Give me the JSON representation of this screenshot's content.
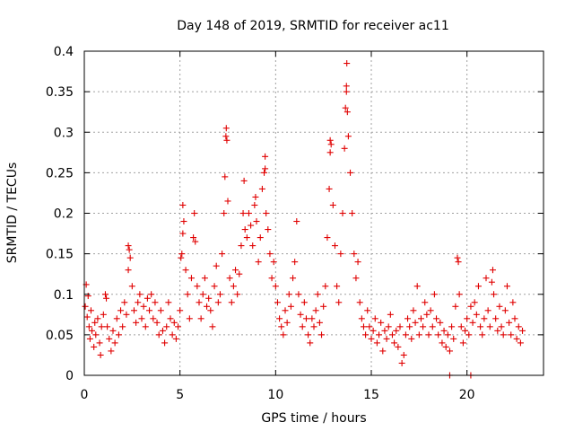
{
  "chart_data": {
    "type": "scatter",
    "title": "Day 148 of 2019, SRMTID for receiver ac11",
    "xlabel": "GPS time / hours",
    "ylabel": "SRMTID / TECUs",
    "xlim": [
      0,
      24
    ],
    "ylim": [
      0,
      0.4
    ],
    "xticks": [
      0,
      5,
      10,
      15,
      20
    ],
    "xtick_labels": [
      "0",
      "5",
      "10",
      "15",
      "20"
    ],
    "yticks": [
      0,
      0.05,
      0.1,
      0.15,
      0.2,
      0.25,
      0.3,
      0.35,
      0.4
    ],
    "ytick_labels": [
      "0",
      "0.05",
      "0.1",
      "0.15",
      "0.2",
      "0.25",
      "0.3",
      "0.35",
      "0.4"
    ],
    "grid": true,
    "marker": "plus",
    "color": "#e00000",
    "series": [
      {
        "name": "SRMTID",
        "points": [
          [
            0.05,
            0.085
          ],
          [
            0.1,
            0.112
          ],
          [
            0.15,
            0.072
          ],
          [
            0.2,
            0.098
          ],
          [
            0.25,
            0.06
          ],
          [
            0.3,
            0.045
          ],
          [
            0.35,
            0.08
          ],
          [
            0.4,
            0.055
          ],
          [
            0.5,
            0.035
          ],
          [
            0.55,
            0.065
          ],
          [
            0.6,
            0.05
          ],
          [
            0.7,
            0.07
          ],
          [
            0.8,
            0.04
          ],
          [
            0.85,
            0.025
          ],
          [
            0.9,
            0.06
          ],
          [
            1.0,
            0.075
          ],
          [
            1.1,
            0.1
          ],
          [
            1.15,
            0.095
          ],
          [
            1.2,
            0.06
          ],
          [
            1.3,
            0.045
          ],
          [
            1.4,
            0.03
          ],
          [
            1.5,
            0.055
          ],
          [
            1.6,
            0.04
          ],
          [
            1.7,
            0.07
          ],
          [
            1.8,
            0.05
          ],
          [
            1.9,
            0.08
          ],
          [
            2.0,
            0.06
          ],
          [
            2.1,
            0.09
          ],
          [
            2.2,
            0.075
          ],
          [
            2.3,
            0.13
          ],
          [
            2.35,
            0.155
          ],
          [
            2.4,
            0.145
          ],
          [
            2.5,
            0.11
          ],
          [
            2.6,
            0.08
          ],
          [
            2.7,
            0.065
          ],
          [
            2.8,
            0.09
          ],
          [
            2.9,
            0.1
          ],
          [
            3.0,
            0.07
          ],
          [
            3.1,
            0.085
          ],
          [
            3.2,
            0.06
          ],
          [
            3.3,
            0.095
          ],
          [
            3.4,
            0.08
          ],
          [
            3.5,
            0.1
          ],
          [
            3.6,
            0.07
          ],
          [
            3.7,
            0.09
          ],
          [
            3.8,
            0.065
          ],
          [
            3.9,
            0.05
          ],
          [
            4.0,
            0.08
          ],
          [
            4.1,
            0.055
          ],
          [
            4.2,
            0.04
          ],
          [
            4.3,
            0.06
          ],
          [
            4.4,
            0.09
          ],
          [
            4.5,
            0.07
          ],
          [
            4.6,
            0.05
          ],
          [
            4.7,
            0.065
          ],
          [
            4.8,
            0.045
          ],
          [
            4.9,
            0.06
          ],
          [
            5.0,
            0.08
          ],
          [
            5.05,
            0.145
          ],
          [
            5.1,
            0.15
          ],
          [
            5.15,
            0.21
          ],
          [
            5.2,
            0.19
          ],
          [
            5.3,
            0.13
          ],
          [
            5.4,
            0.1
          ],
          [
            5.5,
            0.07
          ],
          [
            5.6,
            0.12
          ],
          [
            5.7,
            0.17
          ],
          [
            5.75,
            0.2
          ],
          [
            5.8,
            0.165
          ],
          [
            5.9,
            0.11
          ],
          [
            6.0,
            0.09
          ],
          [
            6.1,
            0.07
          ],
          [
            6.2,
            0.1
          ],
          [
            6.3,
            0.12
          ],
          [
            6.4,
            0.085
          ],
          [
            6.5,
            0.095
          ],
          [
            6.6,
            0.08
          ],
          [
            6.7,
            0.06
          ],
          [
            6.8,
            0.11
          ],
          [
            6.9,
            0.135
          ],
          [
            7.0,
            0.09
          ],
          [
            7.1,
            0.1
          ],
          [
            7.2,
            0.15
          ],
          [
            7.3,
            0.2
          ],
          [
            7.35,
            0.245
          ],
          [
            7.4,
            0.295
          ],
          [
            7.42,
            0.305
          ],
          [
            7.5,
            0.215
          ],
          [
            7.6,
            0.12
          ],
          [
            7.7,
            0.09
          ],
          [
            7.8,
            0.11
          ],
          [
            7.9,
            0.13
          ],
          [
            8.0,
            0.1
          ],
          [
            8.1,
            0.125
          ],
          [
            8.2,
            0.16
          ],
          [
            8.3,
            0.2
          ],
          [
            8.35,
            0.24
          ],
          [
            8.4,
            0.18
          ],
          [
            8.5,
            0.17
          ],
          [
            8.6,
            0.2
          ],
          [
            8.7,
            0.185
          ],
          [
            8.8,
            0.16
          ],
          [
            8.9,
            0.21
          ],
          [
            9.0,
            0.19
          ],
          [
            9.1,
            0.14
          ],
          [
            9.2,
            0.17
          ],
          [
            9.3,
            0.23
          ],
          [
            9.4,
            0.25
          ],
          [
            9.45,
            0.27
          ],
          [
            9.5,
            0.2
          ],
          [
            9.6,
            0.18
          ],
          [
            9.7,
            0.15
          ],
          [
            9.8,
            0.12
          ],
          [
            9.9,
            0.14
          ],
          [
            10.0,
            0.11
          ],
          [
            10.1,
            0.09
          ],
          [
            10.2,
            0.07
          ],
          [
            10.3,
            0.06
          ],
          [
            10.4,
            0.05
          ],
          [
            10.5,
            0.08
          ],
          [
            10.6,
            0.065
          ],
          [
            10.7,
            0.1
          ],
          [
            10.8,
            0.085
          ],
          [
            10.9,
            0.12
          ],
          [
            11.0,
            0.14
          ],
          [
            11.1,
            0.19
          ],
          [
            11.2,
            0.1
          ],
          [
            11.3,
            0.075
          ],
          [
            11.4,
            0.06
          ],
          [
            11.5,
            0.09
          ],
          [
            11.6,
            0.07
          ],
          [
            11.7,
            0.05
          ],
          [
            11.8,
            0.04
          ],
          [
            11.9,
            0.07
          ],
          [
            12.0,
            0.06
          ],
          [
            12.1,
            0.08
          ],
          [
            12.2,
            0.1
          ],
          [
            12.3,
            0.065
          ],
          [
            12.4,
            0.05
          ],
          [
            12.5,
            0.085
          ],
          [
            12.6,
            0.11
          ],
          [
            12.7,
            0.17
          ],
          [
            12.8,
            0.23
          ],
          [
            12.85,
            0.29
          ],
          [
            12.9,
            0.285
          ],
          [
            13.0,
            0.21
          ],
          [
            13.1,
            0.16
          ],
          [
            13.2,
            0.11
          ],
          [
            13.3,
            0.09
          ],
          [
            13.4,
            0.15
          ],
          [
            13.5,
            0.2
          ],
          [
            13.6,
            0.28
          ],
          [
            13.65,
            0.33
          ],
          [
            13.7,
            0.357
          ],
          [
            13.72,
            0.385
          ],
          [
            13.8,
            0.295
          ],
          [
            13.9,
            0.25
          ],
          [
            14.0,
            0.2
          ],
          [
            14.1,
            0.15
          ],
          [
            14.2,
            0.12
          ],
          [
            14.3,
            0.14
          ],
          [
            14.4,
            0.09
          ],
          [
            14.5,
            0.07
          ],
          [
            14.6,
            0.06
          ],
          [
            14.7,
            0.05
          ],
          [
            14.8,
            0.08
          ],
          [
            14.9,
            0.06
          ],
          [
            15.0,
            0.045
          ],
          [
            15.1,
            0.055
          ],
          [
            15.2,
            0.07
          ],
          [
            15.3,
            0.04
          ],
          [
            15.4,
            0.05
          ],
          [
            15.5,
            0.065
          ],
          [
            15.6,
            0.03
          ],
          [
            15.7,
            0.055
          ],
          [
            15.8,
            0.045
          ],
          [
            15.9,
            0.06
          ],
          [
            16.0,
            0.075
          ],
          [
            16.1,
            0.05
          ],
          [
            16.2,
            0.04
          ],
          [
            16.3,
            0.055
          ],
          [
            16.4,
            0.035
          ],
          [
            16.5,
            0.06
          ],
          [
            16.6,
            0.015
          ],
          [
            16.7,
            0.025
          ],
          [
            16.8,
            0.05
          ],
          [
            16.9,
            0.07
          ],
          [
            17.0,
            0.06
          ],
          [
            17.1,
            0.045
          ],
          [
            17.2,
            0.08
          ],
          [
            17.3,
            0.065
          ],
          [
            17.4,
            0.11
          ],
          [
            17.5,
            0.05
          ],
          [
            17.6,
            0.07
          ],
          [
            17.7,
            0.06
          ],
          [
            17.8,
            0.09
          ],
          [
            17.9,
            0.075
          ],
          [
            18.0,
            0.05
          ],
          [
            18.1,
            0.08
          ],
          [
            18.2,
            0.06
          ],
          [
            18.3,
            0.1
          ],
          [
            18.4,
            0.07
          ],
          [
            18.5,
            0.05
          ],
          [
            18.6,
            0.065
          ],
          [
            18.7,
            0.04
          ],
          [
            18.8,
            0.055
          ],
          [
            18.9,
            0.035
          ],
          [
            19.0,
            0.05
          ],
          [
            19.1,
            0.03
          ],
          [
            19.2,
            0.06
          ],
          [
            19.3,
            0.045
          ],
          [
            19.4,
            0.085
          ],
          [
            19.5,
            0.145
          ],
          [
            19.55,
            0.14
          ],
          [
            19.6,
            0.1
          ],
          [
            19.7,
            0.06
          ],
          [
            19.8,
            0.04
          ],
          [
            19.9,
            0.055
          ],
          [
            20.0,
            0.07
          ],
          [
            20.1,
            0.05
          ],
          [
            20.2,
            0.085
          ],
          [
            20.3,
            0.065
          ],
          [
            20.4,
            0.09
          ],
          [
            20.5,
            0.075
          ],
          [
            20.6,
            0.11
          ],
          [
            20.7,
            0.06
          ],
          [
            20.8,
            0.05
          ],
          [
            20.9,
            0.07
          ],
          [
            21.0,
            0.12
          ],
          [
            21.1,
            0.08
          ],
          [
            21.2,
            0.06
          ],
          [
            21.3,
            0.115
          ],
          [
            21.35,
            0.13
          ],
          [
            21.4,
            0.1
          ],
          [
            21.5,
            0.07
          ],
          [
            21.6,
            0.055
          ],
          [
            21.7,
            0.085
          ],
          [
            21.8,
            0.06
          ],
          [
            21.9,
            0.05
          ],
          [
            22.0,
            0.08
          ],
          [
            22.1,
            0.11
          ],
          [
            22.2,
            0.065
          ],
          [
            22.3,
            0.05
          ],
          [
            22.4,
            0.09
          ],
          [
            22.5,
            0.07
          ],
          [
            22.6,
            0.045
          ],
          [
            22.7,
            0.06
          ],
          [
            22.8,
            0.04
          ],
          [
            22.9,
            0.055
          ],
          [
            2.3,
            0.16
          ],
          [
            5.15,
            0.175
          ],
          [
            7.45,
            0.29
          ],
          [
            8.95,
            0.22
          ],
          [
            9.45,
            0.255
          ],
          [
            12.85,
            0.275
          ],
          [
            13.7,
            0.35
          ],
          [
            13.75,
            0.325
          ],
          [
            19.1,
            0.0
          ],
          [
            20.2,
            0.0
          ]
        ]
      }
    ]
  }
}
